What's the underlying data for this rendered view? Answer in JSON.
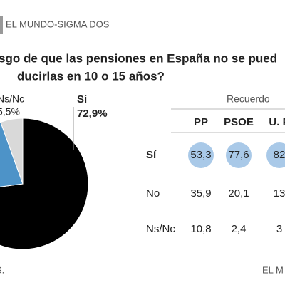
{
  "header": {
    "source": "EL MUNDO-SIGMA DOS"
  },
  "title": {
    "line1": "sgo de que las pensiones en España no se pued",
    "line2": "ducirlas en 10 o 15 años?"
  },
  "chart_data": {
    "type": "pie",
    "categories": [
      "Sí",
      null,
      "Ns/Nc"
    ],
    "values": [
      72.9,
      21.6,
      5.5
    ],
    "value_labels": [
      "72,9%",
      null,
      "5,5%"
    ],
    "colors": [
      "#000000",
      "#4d93c8",
      "#d9d9d9"
    ]
  },
  "table": {
    "header": "Recuerdo",
    "columns": [
      "PP",
      "PSOE",
      "U. P"
    ],
    "rows": [
      {
        "label": "Sí",
        "cells": [
          "53,3",
          "77,6",
          "82"
        ]
      },
      {
        "label": "No",
        "cells": [
          "35,9",
          "20,1",
          "13"
        ]
      },
      {
        "label": "Ns/Nc",
        "cells": [
          "10,8",
          "2,4",
          "3"
        ]
      }
    ]
  },
  "footer": {
    "left": "S.",
    "right": "EL M"
  }
}
